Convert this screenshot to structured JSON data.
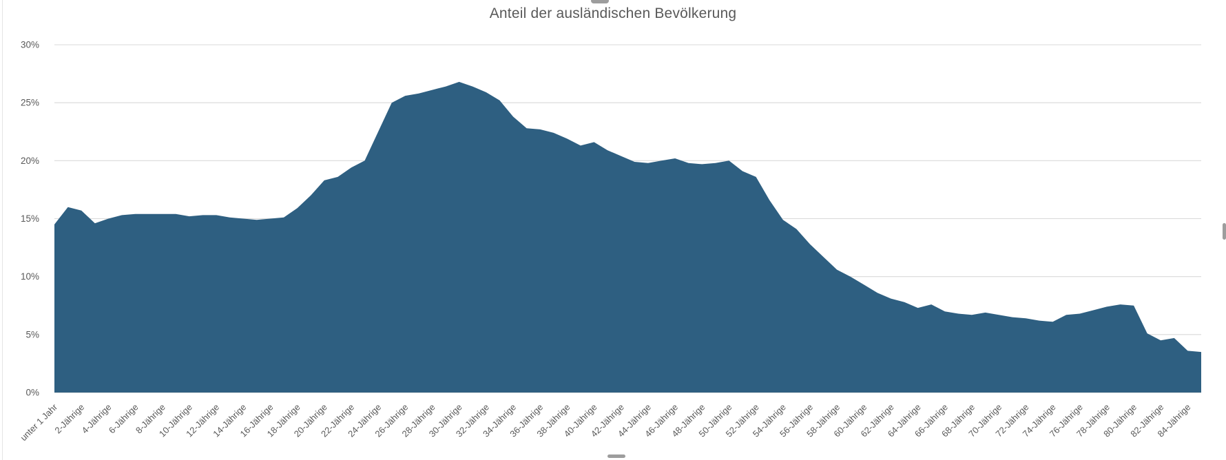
{
  "chart": {
    "title": "Anteil der ausländischen Bevölkerung"
  },
  "chart_data": {
    "type": "area",
    "title": "Anteil der ausländischen Bevölkerung",
    "xlabel": "",
    "ylabel": "",
    "ylim": [
      0,
      30
    ],
    "grid": true,
    "legend": "none",
    "area_color": "#2E5F81",
    "gridline_color": "#D9D9D9",
    "label_color": "#595959",
    "y_ticks": [
      "0%",
      "5%",
      "10%",
      "15%",
      "20%",
      "25%",
      "30%"
    ],
    "x_tick_every": 2,
    "x_tick_labels": [
      "unter 1 Jahr",
      "2-Jährige",
      "4-Jährige",
      "6-Jährige",
      "8-Jährige",
      "10-Jährige",
      "12-Jährige",
      "14-Jährige",
      "16-Jährige",
      "18-Jährige",
      "20-Jährige",
      "22-Jährige",
      "24-Jährige",
      "26-Jährige",
      "28-Jährige",
      "30-Jährige",
      "32-Jährige",
      "34-Jährige",
      "36-Jährige",
      "38-Jährige",
      "40-Jährige",
      "42-Jährige",
      "44-Jährige",
      "46-Jährige",
      "48-Jährige",
      "50-Jährige",
      "52-Jährige",
      "54-Jährige",
      "56-Jährige",
      "58-Jährige",
      "60-Jährige",
      "62-Jährige",
      "64-Jährige",
      "66-Jährige",
      "68-Jährige",
      "70-Jährige",
      "72-Jährige",
      "74-Jährige",
      "76-Jährige",
      "78-Jährige",
      "80-Jährige",
      "82-Jährige",
      "84-Jährige"
    ],
    "series": [
      {
        "name": "Anteil der ausländischen Bevölkerung",
        "values_unit": "%",
        "values": [
          14.5,
          16.0,
          15.7,
          14.6,
          15.0,
          15.3,
          15.4,
          15.4,
          15.4,
          15.4,
          15.2,
          15.3,
          15.3,
          15.1,
          15.0,
          14.9,
          15.0,
          15.1,
          15.9,
          17.0,
          18.3,
          18.6,
          19.4,
          20.0,
          22.5,
          25.0,
          25.6,
          25.8,
          26.1,
          26.4,
          26.8,
          26.4,
          25.9,
          25.2,
          23.8,
          22.8,
          22.7,
          22.4,
          21.9,
          21.3,
          21.6,
          20.9,
          20.4,
          19.9,
          19.8,
          20.0,
          20.2,
          19.8,
          19.7,
          19.8,
          20.0,
          19.1,
          18.6,
          16.6,
          14.9,
          14.1,
          12.8,
          11.7,
          10.6,
          10.0,
          9.3,
          8.6,
          8.1,
          7.8,
          7.3,
          7.6,
          7.0,
          6.8,
          6.7,
          6.9,
          6.7,
          6.5,
          6.4,
          6.2,
          6.1,
          6.7,
          6.8,
          7.1,
          7.4,
          7.6,
          7.5,
          5.1,
          4.5,
          4.7,
          3.6,
          3.5
        ]
      }
    ]
  }
}
